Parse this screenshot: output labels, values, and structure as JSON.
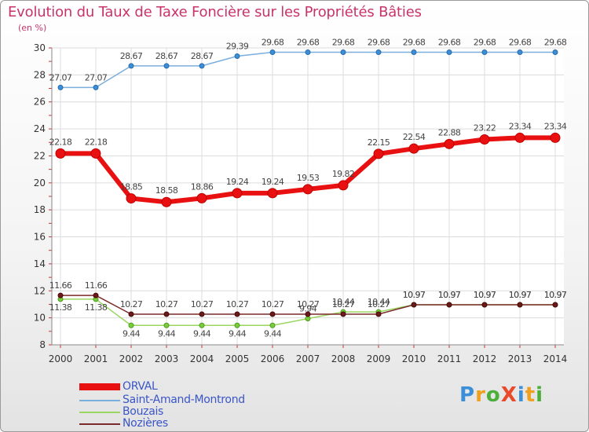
{
  "header": {
    "title": "Evolution du Taux de Taxe Foncière sur les Propriétés Bâties",
    "unit": "(en %)"
  },
  "logo": {
    "text": "ProXiti",
    "colors": [
      "#3a8fd8",
      "#f0a020",
      "#4caf3a",
      "#e84a2a",
      "#3a8fd8",
      "#f0a020",
      "#4caf3a"
    ]
  },
  "chart_data": {
    "type": "line",
    "title": "Evolution du Taux de Taxe Foncière sur les Propriétés Bâties",
    "ylabel": "(en %)",
    "xlabel": "",
    "ylim": [
      8,
      30
    ],
    "yticks": [
      8,
      10,
      12,
      14,
      16,
      18,
      20,
      22,
      24,
      26,
      28,
      30
    ],
    "grid": true,
    "categories": [
      "2000",
      "2001",
      "2002",
      "2003",
      "2004",
      "2005",
      "2006",
      "2007",
      "2008",
      "2009",
      "2010",
      "2011",
      "2012",
      "2013",
      "2014"
    ],
    "series": [
      {
        "name": "ORVAL",
        "color": "#e81010",
        "values": [
          22.18,
          22.18,
          18.85,
          18.58,
          18.86,
          19.24,
          19.24,
          19.53,
          19.82,
          22.15,
          22.54,
          22.88,
          23.22,
          23.34,
          23.34
        ],
        "labels": [
          "22.18",
          "22.18",
          "18.85",
          "18.58",
          "18.86",
          "19.24",
          "19.24",
          "19.53",
          "19.82",
          "22.15",
          "22.54",
          "22.88",
          "23.22",
          "23.34",
          "23.34"
        ]
      },
      {
        "name": "Saint-Amand-Montrond",
        "color": "#7aaedc",
        "values": [
          27.07,
          27.07,
          28.67,
          28.67,
          28.67,
          29.39,
          29.68,
          29.68,
          29.68,
          29.68,
          29.68,
          29.68,
          29.68,
          29.68,
          29.68
        ],
        "labels": [
          "27.07",
          "27.07",
          "28.67",
          "28.67",
          "28.67",
          "29.39",
          "29.68",
          "29.68",
          "29.68",
          "29.68",
          "29.68",
          "29.68",
          "29.68",
          "29.68",
          "29.68"
        ]
      },
      {
        "name": "Bouzais",
        "color": "#9ad660",
        "values": [
          11.38,
          11.38,
          9.44,
          9.44,
          9.44,
          9.44,
          9.44,
          9.94,
          10.44,
          10.44,
          10.97,
          10.97,
          10.97,
          10.97,
          10.97
        ],
        "labels": [
          "11.38",
          "11.38",
          "9.44",
          "9.44",
          "9.44",
          "9.44",
          "9.44",
          "9.94",
          "10.44",
          "10.44",
          "10.97",
          "10.97",
          "10.97",
          "10.97",
          "10.97"
        ]
      },
      {
        "name": "Nozières",
        "color": "#7a2a2a",
        "values": [
          11.66,
          11.66,
          10.27,
          10.27,
          10.27,
          10.27,
          10.27,
          10.27,
          10.27,
          10.27,
          10.97,
          10.97,
          10.97,
          10.97,
          10.97
        ],
        "labels": [
          "11.66",
          "11.66",
          "10.27",
          "10.27",
          "10.27",
          "10.27",
          "10.27",
          "10.27",
          "10.27",
          "10.27",
          "10.97",
          "10.97",
          "10.97",
          "10.97",
          "10.97"
        ]
      }
    ]
  }
}
